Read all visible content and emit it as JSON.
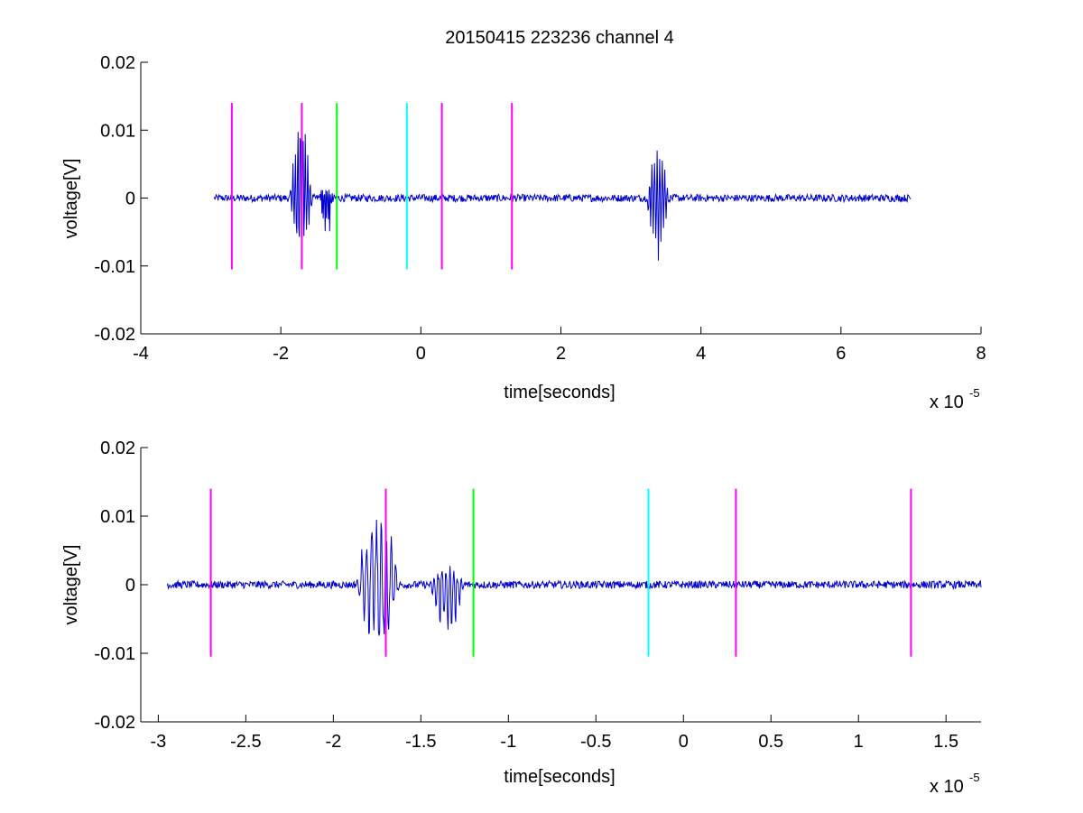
{
  "chart_data": [
    {
      "type": "line",
      "title": "20150415 223236 channel 4",
      "xlabel": "time[seconds]",
      "ylabel": "voltage[V]",
      "x_exponent_label": "x 10",
      "x_exponent_power": "-5",
      "xlim": [
        -4,
        8
      ],
      "ylim": [
        -0.02,
        0.02
      ],
      "xticks": [
        -4,
        -2,
        0,
        2,
        4,
        6,
        8
      ],
      "xtick_labels": [
        "-4",
        "-2",
        "0",
        "2",
        "4",
        "6",
        "8"
      ],
      "yticks": [
        -0.02,
        -0.01,
        0,
        0.01,
        0.02
      ],
      "ytick_labels": [
        "-0.02",
        "-0.01",
        "0",
        "0.01",
        "0.02"
      ],
      "grid": false,
      "series_color": "#0000cc",
      "signal_x_range": [
        -2.95,
        7.0
      ],
      "bursts": [
        {
          "x_start": -1.87,
          "x_end": -1.55,
          "peak_max": 0.013,
          "peak_min": -0.009
        },
        {
          "x_start": -1.45,
          "x_end": -1.25,
          "peak_max": 0.0025,
          "peak_min": -0.0078
        },
        {
          "x_start": 3.22,
          "x_end": 3.55,
          "peak_max": 0.0075,
          "peak_min": -0.0095
        }
      ],
      "markers": [
        {
          "x": -2.7,
          "color": "#ff00ff",
          "y_top": 0.014,
          "y_bottom": -0.0105
        },
        {
          "x": -1.7,
          "color": "#ff00ff",
          "y_top": 0.014,
          "y_bottom": -0.0105
        },
        {
          "x": -1.2,
          "color": "#00ff00",
          "y_top": 0.014,
          "y_bottom": -0.0105
        },
        {
          "x": -0.2,
          "color": "#00ffff",
          "y_top": 0.014,
          "y_bottom": -0.0105
        },
        {
          "x": 0.3,
          "color": "#ff00ff",
          "y_top": 0.014,
          "y_bottom": -0.0105
        },
        {
          "x": 1.3,
          "color": "#ff00ff",
          "y_top": 0.014,
          "y_bottom": -0.0105
        }
      ]
    },
    {
      "type": "line",
      "title": "",
      "xlabel": "time[seconds]",
      "ylabel": "voltage[V]",
      "x_exponent_label": "x 10",
      "x_exponent_power": "-5",
      "xlim": [
        -3.1,
        1.7
      ],
      "ylim": [
        -0.02,
        0.02
      ],
      "xticks": [
        -3,
        -2.5,
        -2,
        -1.5,
        -1,
        -0.5,
        0,
        0.5,
        1,
        1.5
      ],
      "xtick_labels": [
        "-3",
        "-2.5",
        "-2",
        "-1.5",
        "-1",
        "-0.5",
        "0",
        "0.5",
        "1",
        "1.5"
      ],
      "yticks": [
        -0.02,
        -0.01,
        0,
        0.01,
        0.02
      ],
      "ytick_labels": [
        "-0.02",
        "-0.01",
        "0",
        "0.01",
        "0.02"
      ],
      "grid": false,
      "series_color": "#0000cc",
      "signal_x_range": [
        -2.95,
        1.7
      ],
      "bursts": [
        {
          "x_start": -1.87,
          "x_end": -1.62,
          "peak_max": 0.013,
          "peak_min": -0.009
        },
        {
          "x_start": -1.45,
          "x_end": -1.25,
          "peak_max": 0.0025,
          "peak_min": -0.0078
        }
      ],
      "markers": [
        {
          "x": -2.7,
          "color": "#ff00ff",
          "y_top": 0.014,
          "y_bottom": -0.0105
        },
        {
          "x": -1.7,
          "color": "#ff00ff",
          "y_top": 0.014,
          "y_bottom": -0.0105
        },
        {
          "x": -1.2,
          "color": "#00ff00",
          "y_top": 0.014,
          "y_bottom": -0.0105
        },
        {
          "x": -0.2,
          "color": "#00ffff",
          "y_top": 0.014,
          "y_bottom": -0.0105
        },
        {
          "x": 0.3,
          "color": "#ff00ff",
          "y_top": 0.014,
          "y_bottom": -0.0105
        },
        {
          "x": 1.3,
          "color": "#ff00ff",
          "y_top": 0.014,
          "y_bottom": -0.0105
        }
      ]
    }
  ]
}
